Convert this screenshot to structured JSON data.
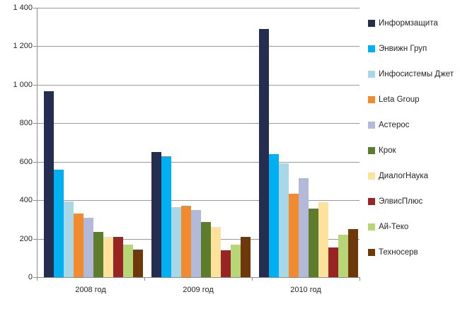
{
  "chart_data": {
    "type": "bar",
    "title": "",
    "xlabel": "",
    "ylabel": "",
    "categories": [
      "2008 год",
      "2009 год",
      "2010 год"
    ],
    "series": [
      {
        "name": "Информзащита",
        "color": "#242F4F",
        "values": [
          965,
          650,
          1290
        ]
      },
      {
        "name": "Энвижн Груп",
        "color": "#00B0F0",
        "values": [
          560,
          630,
          640
        ]
      },
      {
        "name": "Инфосистемы Джет",
        "color": "#A8D7E6",
        "values": [
          395,
          365,
          590
        ]
      },
      {
        "name": "Leta Group",
        "color": "#F28B30",
        "values": [
          330,
          370,
          435
        ]
      },
      {
        "name": "Астерос",
        "color": "#B3B9D8",
        "values": [
          310,
          350,
          515
        ]
      },
      {
        "name": "Крок",
        "color": "#5E7D2C",
        "values": [
          235,
          285,
          355
        ]
      },
      {
        "name": "ДиалогНаука",
        "color": "#FCE29B",
        "values": [
          210,
          260,
          390
        ]
      },
      {
        "name": "ЭлвисПлюс",
        "color": "#982423",
        "values": [
          210,
          140,
          155
        ]
      },
      {
        "name": "Ай-Теко",
        "color": "#B6D678",
        "values": [
          170,
          170,
          220
        ]
      },
      {
        "name": "Техносерв",
        "color": "#6D390B",
        "values": [
          145,
          210,
          250
        ]
      }
    ],
    "ylim": [
      0,
      1400
    ],
    "y_ticks": [
      0,
      200,
      400,
      600,
      800,
      1000,
      1200,
      1400
    ],
    "y_tick_labels": [
      "0",
      "200",
      "400",
      "600",
      "800",
      "1 000",
      "1 200",
      "1 400"
    ],
    "grid": true,
    "legend_position": "right"
  },
  "colors": {
    "background": "#FFFFFF",
    "gridline": "#9A9A9A",
    "axis": "#8C8C8C",
    "text": "#262626"
  }
}
